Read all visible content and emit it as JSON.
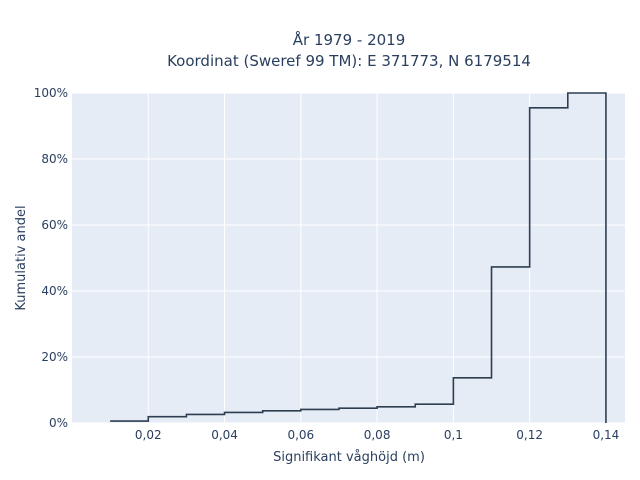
{
  "chart_data": {
    "type": "line",
    "subtype": "cumulative-step-histogram",
    "title_lines": [
      "År 1979 - 2019",
      "Koordinat (Sweref 99 TM): E 371773, N 6179514"
    ],
    "xlabel": "Signifikant våghöjd (m)",
    "ylabel": "Kumulativ andel",
    "xlim": [
      0.0,
      0.145
    ],
    "ylim": [
      0,
      100
    ],
    "x_ticks": [
      {
        "value": 0.02,
        "label": "0,02"
      },
      {
        "value": 0.04,
        "label": "0,04"
      },
      {
        "value": 0.06,
        "label": "0,06"
      },
      {
        "value": 0.08,
        "label": "0,08"
      },
      {
        "value": 0.1,
        "label": "0,1"
      },
      {
        "value": 0.12,
        "label": "0,12"
      },
      {
        "value": 0.14,
        "label": "0,14"
      }
    ],
    "y_ticks": [
      {
        "value": 0,
        "label": "0%"
      },
      {
        "value": 20,
        "label": "20%"
      },
      {
        "value": 40,
        "label": "40%"
      },
      {
        "value": 60,
        "label": "60%"
      },
      {
        "value": 80,
        "label": "80%"
      },
      {
        "value": 100,
        "label": "100%"
      }
    ],
    "bins": [
      {
        "x0": 0.01,
        "x1": 0.02,
        "y": 0.6
      },
      {
        "x0": 0.02,
        "x1": 0.03,
        "y": 1.9
      },
      {
        "x0": 0.03,
        "x1": 0.04,
        "y": 2.6
      },
      {
        "x0": 0.04,
        "x1": 0.05,
        "y": 3.2
      },
      {
        "x0": 0.05,
        "x1": 0.06,
        "y": 3.7
      },
      {
        "x0": 0.06,
        "x1": 0.07,
        "y": 4.1
      },
      {
        "x0": 0.07,
        "x1": 0.08,
        "y": 4.5
      },
      {
        "x0": 0.08,
        "x1": 0.09,
        "y": 4.9
      },
      {
        "x0": 0.09,
        "x1": 0.1,
        "y": 5.7
      },
      {
        "x0": 0.1,
        "x1": 0.11,
        "y": 13.7
      },
      {
        "x0": 0.11,
        "x1": 0.12,
        "y": 47.3
      },
      {
        "x0": 0.12,
        "x1": 0.13,
        "y": 95.5
      },
      {
        "x0": 0.13,
        "x1": 0.14,
        "y": 100
      }
    ],
    "grid": true,
    "colors": {
      "plot_bg": "#e5ecf6",
      "grid": "#ffffff",
      "line": "#2d3e50",
      "text": "#2a3f5f"
    }
  }
}
